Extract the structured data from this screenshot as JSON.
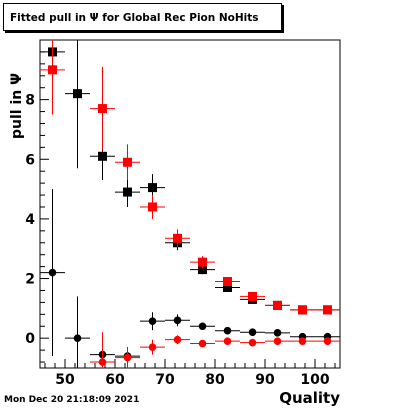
{
  "chart_data": {
    "type": "scatter",
    "title": "Fitted pull in Ψ  for Global Rec Pion NoHits",
    "xlabel": "Quality",
    "ylabel": "pull in  Ψ",
    "xlim": [
      45,
      105
    ],
    "ylim": [
      -1,
      10
    ],
    "x_ticks": [
      50,
      60,
      70,
      80,
      90,
      100
    ],
    "y_ticks": [
      0,
      2,
      4,
      6,
      8
    ],
    "grid": false,
    "series": [
      {
        "color": "#000000",
        "marker": "square",
        "points": [
          {
            "x": 47.5,
            "y": 9.6,
            "err": 0.7
          },
          {
            "x": 52.5,
            "y": 8.2,
            "err": 2.5
          },
          {
            "x": 57.5,
            "y": 6.1,
            "err": 0.8
          },
          {
            "x": 62.5,
            "y": 4.9,
            "err": 0.5
          },
          {
            "x": 67.5,
            "y": 5.05,
            "err": 0.45
          },
          {
            "x": 72.5,
            "y": 3.2,
            "err": 0.25
          },
          {
            "x": 77.5,
            "y": 2.3,
            "err": 0.15
          },
          {
            "x": 82.5,
            "y": 1.7,
            "err": 0.12
          },
          {
            "x": 87.5,
            "y": 1.3,
            "err": 0.1
          },
          {
            "x": 92.5,
            "y": 1.1,
            "err": 0.08
          },
          {
            "x": 97.5,
            "y": 0.95,
            "err": 0.06
          },
          {
            "x": 102.5,
            "y": 0.95,
            "err": 0.06
          }
        ]
      },
      {
        "color": "#ff0000",
        "marker": "square",
        "points": [
          {
            "x": 47.5,
            "y": 9.0,
            "err": 1.5
          },
          {
            "x": 57.5,
            "y": 7.7,
            "err": 1.4
          },
          {
            "x": 62.5,
            "y": 5.9,
            "err": 0.6
          },
          {
            "x": 67.5,
            "y": 4.4,
            "err": 0.4
          },
          {
            "x": 72.5,
            "y": 3.35,
            "err": 0.3
          },
          {
            "x": 77.5,
            "y": 2.55,
            "err": 0.2
          },
          {
            "x": 82.5,
            "y": 1.9,
            "err": 0.14
          },
          {
            "x": 87.5,
            "y": 1.4,
            "err": 0.1
          },
          {
            "x": 92.5,
            "y": 1.1,
            "err": 0.08
          },
          {
            "x": 97.5,
            "y": 0.95,
            "err": 0.06
          },
          {
            "x": 102.5,
            "y": 0.95,
            "err": 0.06
          }
        ]
      },
      {
        "color": "#000000",
        "marker": "circle",
        "points": [
          {
            "x": 47.5,
            "y": 2.2,
            "err": 2.8
          },
          {
            "x": 52.5,
            "y": 0.0,
            "err": 1.4
          },
          {
            "x": 57.5,
            "y": -0.55,
            "err": 0.4
          },
          {
            "x": 62.5,
            "y": -0.6,
            "err": 0.3
          },
          {
            "x": 67.5,
            "y": 0.57,
            "err": 0.3
          },
          {
            "x": 72.5,
            "y": 0.6,
            "err": 0.2
          },
          {
            "x": 77.5,
            "y": 0.4,
            "err": 0.12
          },
          {
            "x": 82.5,
            "y": 0.25,
            "err": 0.08
          },
          {
            "x": 87.5,
            "y": 0.2,
            "err": 0.06
          },
          {
            "x": 92.5,
            "y": 0.18,
            "err": 0.05
          },
          {
            "x": 97.5,
            "y": 0.05,
            "err": 0.04
          },
          {
            "x": 102.5,
            "y": 0.05,
            "err": 0.04
          }
        ]
      },
      {
        "color": "#ff0000",
        "marker": "circle",
        "points": [
          {
            "x": 57.5,
            "y": -0.8,
            "err": 1.0
          },
          {
            "x": 62.5,
            "y": -0.65,
            "err": 0.35
          },
          {
            "x": 67.5,
            "y": -0.3,
            "err": 0.25
          },
          {
            "x": 72.5,
            "y": -0.05,
            "err": 0.15
          },
          {
            "x": 77.5,
            "y": -0.18,
            "err": 0.1
          },
          {
            "x": 82.5,
            "y": -0.1,
            "err": 0.08
          },
          {
            "x": 87.5,
            "y": -0.15,
            "err": 0.06
          },
          {
            "x": 92.5,
            "y": -0.1,
            "err": 0.05
          },
          {
            "x": 97.5,
            "y": -0.1,
            "err": 0.04
          },
          {
            "x": 102.5,
            "y": -0.1,
            "err": 0.04
          }
        ]
      }
    ]
  },
  "footer": {
    "timestamp": "Mon Dec 20 21:18:09 2021"
  }
}
